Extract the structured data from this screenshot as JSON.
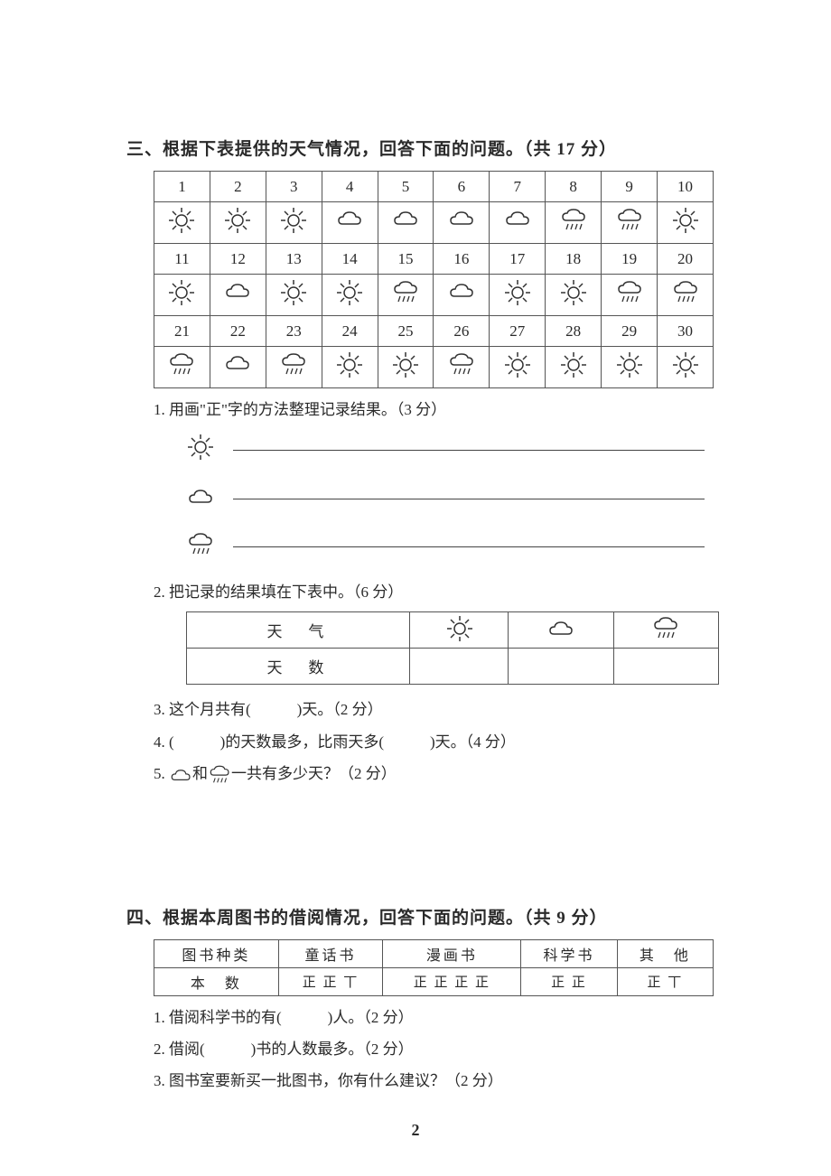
{
  "section3": {
    "title": "三、根据下表提供的天气情况，回答下面的问题。（共 17 分）",
    "days_row1": [
      "1",
      "2",
      "3",
      "4",
      "5",
      "6",
      "7",
      "8",
      "9",
      "10"
    ],
    "icons_row1": [
      "sun",
      "sun",
      "sun",
      "cloud",
      "cloud",
      "cloud",
      "cloud",
      "rain",
      "rain",
      "sun"
    ],
    "days_row2": [
      "11",
      "12",
      "13",
      "14",
      "15",
      "16",
      "17",
      "18",
      "19",
      "20"
    ],
    "icons_row2": [
      "sun",
      "cloud",
      "sun",
      "sun",
      "rain",
      "cloud",
      "sun",
      "sun",
      "rain",
      "rain"
    ],
    "days_row3": [
      "21",
      "22",
      "23",
      "24",
      "25",
      "26",
      "27",
      "28",
      "29",
      "30"
    ],
    "icons_row3": [
      "rain",
      "cloud",
      "rain",
      "sun",
      "sun",
      "rain",
      "sun",
      "sun",
      "sun",
      "sun"
    ],
    "q1": "1. 用画\"正\"字的方法整理记录结果。（3 分）",
    "q2": "2. 把记录的结果填在下表中。（6 分）",
    "result_header": [
      "天　气",
      "sun",
      "cloud",
      "rain"
    ],
    "result_row2_label": "天　数",
    "q3": "3. 这个月共有(　　　)天。（2 分）",
    "q4": "4. (　　　)的天数最多，比雨天多(　　　)天。（4 分）",
    "q5_prefix": "5. ",
    "q5_mid": "和",
    "q5_suffix": "一共有多少天？（2 分）"
  },
  "section4": {
    "title": "四、根据本周图书的借阅情况，回答下面的问题。（共 9 分）",
    "header": [
      "图书种类",
      "童话书",
      "漫画书",
      "科学书",
      "其　他"
    ],
    "row2_label": "本　数",
    "tallies": [
      "正 正 丅",
      "正 正 正 正",
      "正 正",
      "正 丅"
    ],
    "q1": "1. 借阅科学书的有(　　　)人。（2 分）",
    "q2": "2. 借阅(　　　)书的人数最多。（2 分）",
    "q3": "3. 图书室要新买一批图书，你有什么建议？（2 分）"
  },
  "page_number": "2"
}
